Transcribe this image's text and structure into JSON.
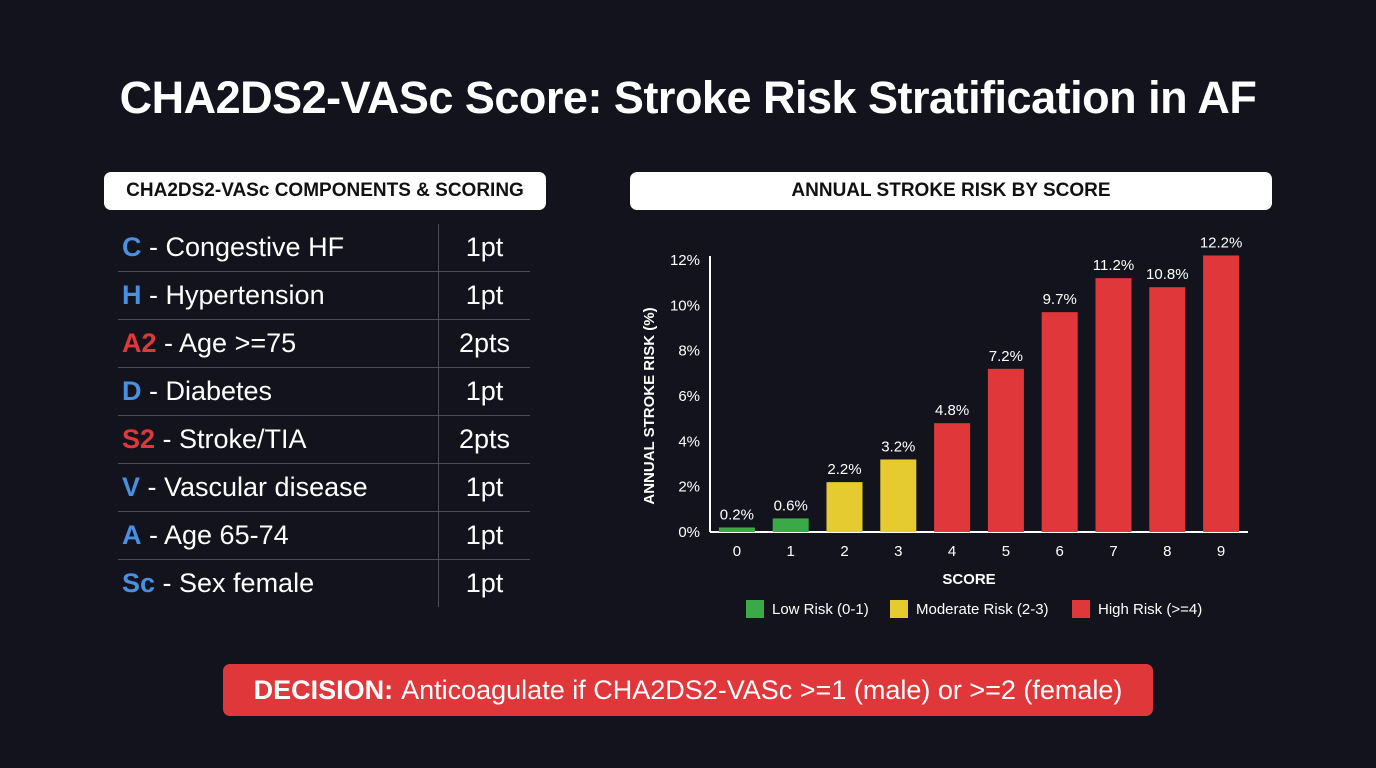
{
  "title": "CHA2DS2-VASc Score: Stroke Risk Stratification in AF",
  "components_panel": {
    "header": "CHA2DS2-VASc COMPONENTS & SCORING",
    "rows": [
      {
        "letter": "C",
        "letter_color": "#4a8fe0",
        "description": " - Congestive HF",
        "points": "1pt"
      },
      {
        "letter": "H",
        "letter_color": "#4a8fe0",
        "description": " - Hypertension",
        "points": "1pt"
      },
      {
        "letter": "A2",
        "letter_color": "#e0373b",
        "description": " - Age >=75",
        "points": "2pts"
      },
      {
        "letter": "D",
        "letter_color": "#4a8fe0",
        "description": " - Diabetes",
        "points": "1pt"
      },
      {
        "letter": "S2",
        "letter_color": "#e0373b",
        "description": " - Stroke/TIA",
        "points": "2pts"
      },
      {
        "letter": "V",
        "letter_color": "#4a8fe0",
        "description": " - Vascular disease",
        "points": "1pt"
      },
      {
        "letter": "A",
        "letter_color": "#4a8fe0",
        "description": " - Age 65-74",
        "points": "1pt"
      },
      {
        "letter": "Sc",
        "letter_color": "#4a8fe0",
        "description": " - Sex female",
        "points": "1pt"
      }
    ]
  },
  "chart_panel": {
    "header": "ANNUAL STROKE RISK BY SCORE"
  },
  "chart_data": {
    "type": "bar",
    "categories": [
      "0",
      "1",
      "2",
      "3",
      "4",
      "5",
      "6",
      "7",
      "8",
      "9"
    ],
    "values": [
      0.2,
      0.6,
      2.2,
      3.2,
      4.8,
      7.2,
      9.7,
      11.2,
      10.8,
      12.2
    ],
    "value_labels": [
      "0.2%",
      "0.6%",
      "2.2%",
      "3.2%",
      "4.8%",
      "7.2%",
      "9.7%",
      "11.2%",
      "10.8%",
      "12.2%"
    ],
    "risk_group": [
      "low",
      "low",
      "moderate",
      "moderate",
      "high",
      "high",
      "high",
      "high",
      "high",
      "high"
    ],
    "xlabel": "SCORE",
    "ylabel": "ANNUAL STROKE RISK (%)",
    "ylim": [
      0,
      12
    ],
    "yticks": [
      0,
      2,
      4,
      6,
      8,
      10,
      12
    ],
    "ytick_labels": [
      "0%",
      "2%",
      "4%",
      "6%",
      "8%",
      "10%",
      "12%"
    ],
    "grid": false,
    "legend": [
      {
        "key": "low",
        "label": "Low Risk (0-1)",
        "color": "#3aaa48"
      },
      {
        "key": "moderate",
        "label": "Moderate Risk (2-3)",
        "color": "#e6cb30"
      },
      {
        "key": "high",
        "label": "High Risk (>=4)",
        "color": "#e0373b"
      }
    ],
    "legend_position": "bottom"
  },
  "decision": {
    "label": "DECISION:",
    "text": "Anticoagulate if CHA2DS2-VASc >=1 (male) or >=2 (female)",
    "color": "#e0373b"
  }
}
